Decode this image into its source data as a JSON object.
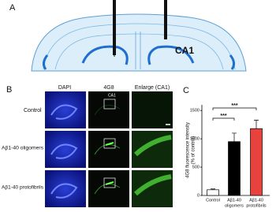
{
  "panels": {
    "a": "A",
    "b": "B",
    "c": "C"
  },
  "diagram": {
    "region_label": "CA1"
  },
  "images": {
    "columns": [
      "DAPI",
      "4G8",
      "Enlarge (CA1)"
    ],
    "rows": [
      "Control",
      "Aβ1-40 oligomers",
      "Aβ1-40 protofibrils"
    ],
    "inset_label": "CA1"
  },
  "chart_data": {
    "type": "bar",
    "y_label": [
      "4G8 fluorescence intensity",
      "(% of control)"
    ],
    "categories": [
      "Control",
      "Aβ1-40",
      "Aβ1-40"
    ],
    "category_sublabels": [
      null,
      "oligomers",
      "protofibrils"
    ],
    "values": [
      100,
      950,
      1180
    ],
    "errors": [
      15,
      150,
      150
    ],
    "colors": [
      "#ffffff",
      "#000000",
      "#e8423f"
    ],
    "ylim": [
      0,
      1600
    ],
    "yticks": [
      0,
      500,
      1000,
      1500
    ],
    "annotations": [
      "***",
      "***"
    ]
  }
}
